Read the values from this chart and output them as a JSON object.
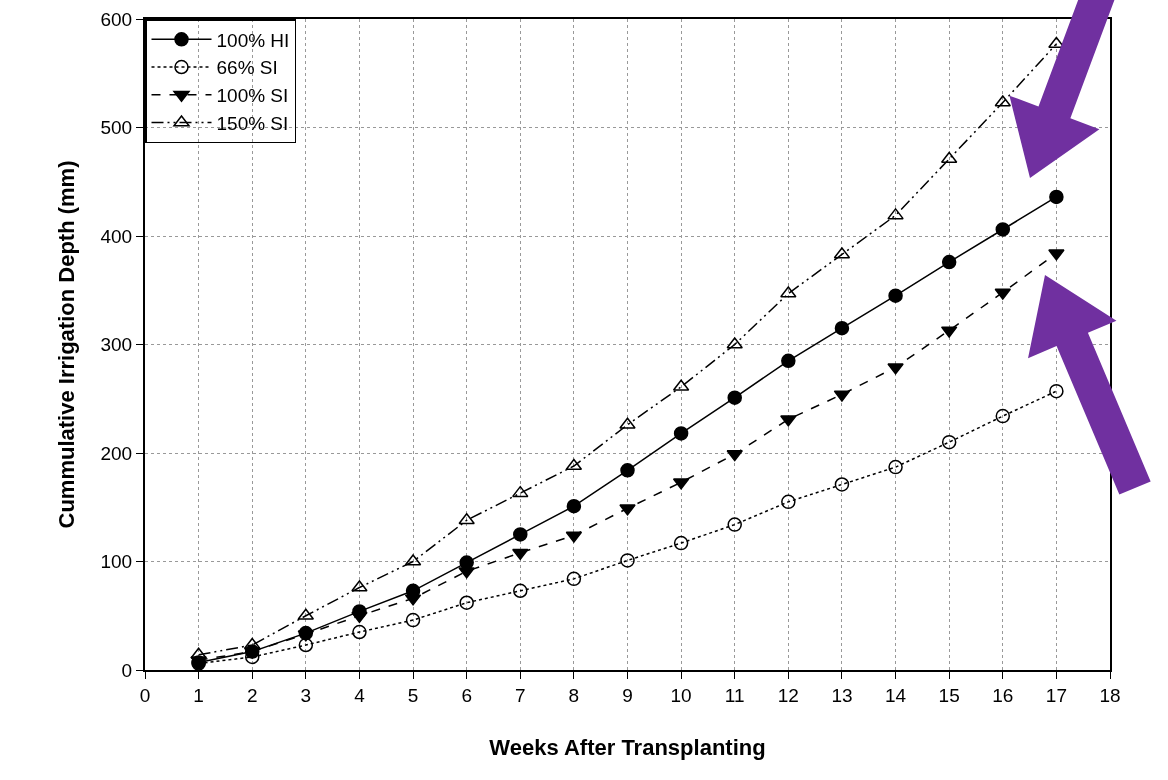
{
  "chart_data": {
    "type": "line",
    "xlabel": "Weeks After Transplanting",
    "ylabel": "Cummulative Irrigation Depth (mm)",
    "x": [
      1,
      2,
      3,
      4,
      5,
      6,
      7,
      8,
      9,
      10,
      11,
      12,
      13,
      14,
      15,
      16,
      17
    ],
    "xlim": [
      0,
      18
    ],
    "xticks": [
      0,
      1,
      2,
      3,
      4,
      5,
      6,
      7,
      8,
      9,
      10,
      11,
      12,
      13,
      14,
      15,
      16,
      17,
      18
    ],
    "ylim": [
      0,
      600
    ],
    "yticks": [
      0,
      100,
      200,
      300,
      400,
      500,
      600
    ],
    "grid": true,
    "legend": "top left",
    "series": [
      {
        "name": "100% HI",
        "color": "#000000",
        "marker": "circle",
        "line_style": "solid",
        "values": [
          7,
          17,
          34,
          54,
          73,
          99,
          125,
          151,
          184,
          218,
          251,
          285,
          315,
          345,
          376,
          406,
          436
        ]
      },
      {
        "name": "66% SI",
        "color": "#000000",
        "marker": "circle-open",
        "line_style": "dotted",
        "values": [
          6,
          12,
          23,
          35,
          46,
          62,
          73,
          84,
          101,
          117,
          134,
          155,
          171,
          187,
          210,
          234,
          257
        ]
      },
      {
        "name": "100% SI",
        "color": "#000000",
        "marker": "triangle-down",
        "line_style": "dashed",
        "values": [
          9,
          17,
          33,
          50,
          66,
          91,
          108,
          124,
          149,
          173,
          199,
          231,
          254,
          279,
          313,
          348,
          384
        ]
      },
      {
        "name": "150% SI",
        "color": "#000000",
        "marker": "triangle-up-open",
        "line_style": "dashdot",
        "values": [
          14,
          23,
          50,
          76,
          100,
          138,
          163,
          188,
          226,
          261,
          300,
          347,
          383,
          419,
          471,
          523,
          577
        ]
      }
    ]
  }
}
